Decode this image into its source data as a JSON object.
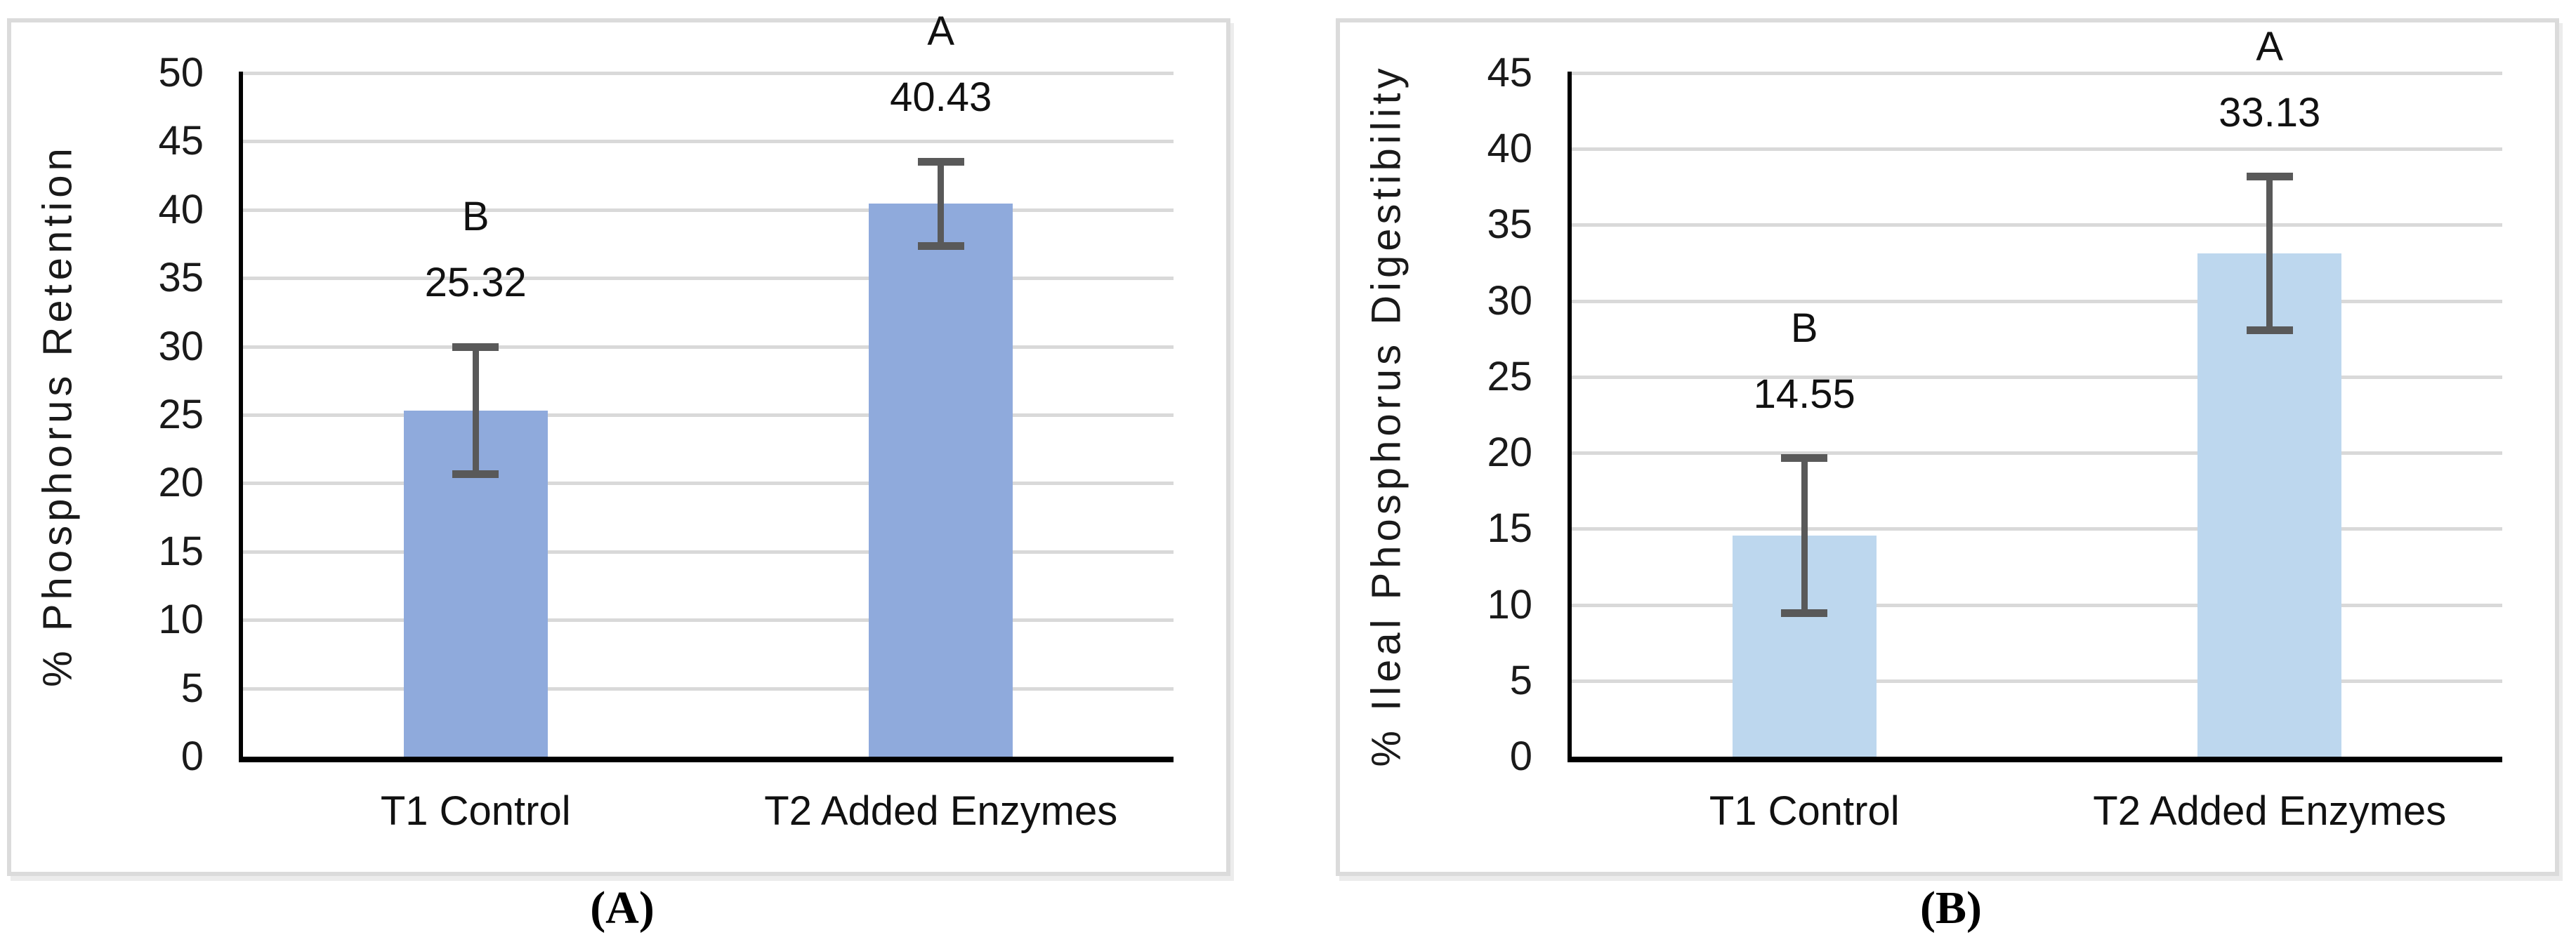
{
  "colors": {
    "bar_panel_a": "#8FAADC",
    "bar_panel_b": "#BDD7EE",
    "gridline": "#D9D9D9",
    "axis": "#000000",
    "error_bar": "#595959",
    "panel_border": "#DBDBDB",
    "text": "#1A1A1A"
  },
  "chart_data": [
    {
      "type": "bar",
      "panel": "A",
      "caption": "(A)",
      "title": "",
      "xlabel": "",
      "ylabel": "% Phosphorus Retention",
      "ylim": [
        0,
        50
      ],
      "ytick_step": 5,
      "yticks": [
        0,
        5,
        10,
        15,
        20,
        25,
        30,
        35,
        40,
        45,
        50
      ],
      "grid": "horizontal",
      "legend": "none",
      "categories": [
        "T1 Control",
        "T2 Added Enzymes"
      ],
      "values": [
        25.32,
        40.43
      ],
      "value_labels": [
        "25.32",
        "40.43"
      ],
      "sig_letters": [
        "B",
        "A"
      ],
      "error_bars": [
        {
          "plus": 4.65,
          "minus": 4.65
        },
        {
          "plus": 3.1,
          "minus": 3.1
        }
      ],
      "bar_color": "#8FAADC"
    },
    {
      "type": "bar",
      "panel": "B",
      "caption": "(B)",
      "title": "",
      "xlabel": "",
      "ylabel": "% Ileal Phosphorus Digestibility",
      "ylim": [
        0,
        45
      ],
      "ytick_step": 5,
      "yticks": [
        0,
        5,
        10,
        15,
        20,
        25,
        30,
        35,
        40,
        45
      ],
      "grid": "horizontal",
      "legend": "none",
      "categories": [
        "T1 Control",
        "T2 Added Enzymes"
      ],
      "values": [
        14.55,
        33.13
      ],
      "value_labels": [
        "14.55",
        "33.13"
      ],
      "sig_letters": [
        "B",
        "A"
      ],
      "error_bars": [
        {
          "plus": 5.1,
          "minus": 5.1
        },
        {
          "plus": 5.05,
          "minus": 5.05
        }
      ],
      "bar_color": "#BDD7EE"
    }
  ]
}
